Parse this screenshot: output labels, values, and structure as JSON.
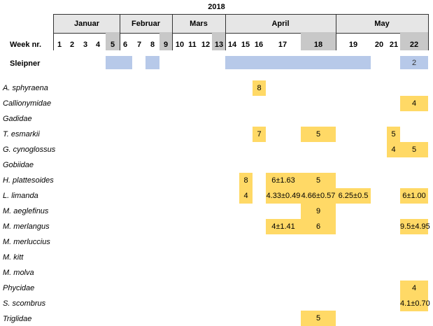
{
  "year": "2018",
  "week_label": "Week nr.",
  "months": [
    "Januar",
    "Februar",
    "Mars",
    "April",
    "May"
  ],
  "weeks": [
    "1",
    "2",
    "3",
    "4",
    "5",
    "6",
    "7",
    "8",
    "9",
    "10",
    "11",
    "12",
    "13",
    "14",
    "15",
    "16",
    "17",
    "18",
    "19",
    "20",
    "21",
    "22"
  ],
  "shaded_weeks": [
    "5",
    "9",
    "13",
    "18",
    "22"
  ],
  "sleipner": {
    "label": "Sleipner",
    "value_week22": "2"
  },
  "species": [
    "A. sphyraena",
    "Callionymidae",
    "Gadidae",
    "T. esmarkii",
    "G. cynoglossus",
    "Gobiidae",
    "H. plattesoides",
    "L. limanda",
    "M. aeglefinus",
    "M. merlangus",
    "M. merluccius",
    "M. kitt",
    "M. molva",
    "Phycidae",
    "S. scombrus",
    "Triglidae"
  ],
  "cells": {
    "a_sphyraena": {
      "w16": "8"
    },
    "callionymidae": {
      "w22": "4"
    },
    "t_esmarkii": {
      "w16": "7",
      "w18": "5",
      "w21": "5"
    },
    "g_cynoglossus": {
      "w21": "4",
      "w22": "5"
    },
    "h_plattesoides": {
      "w15": "8",
      "w17": "6±1.63",
      "w18": "5"
    },
    "l_limanda": {
      "w15": "4",
      "w17": "4.33±0.49",
      "w18": "4.66±0.57",
      "w19": "6.25±0.5",
      "w22": "6±1.00"
    },
    "m_aeglefinus": {
      "w18": "9"
    },
    "m_merlangus": {
      "w17": "4±1.41",
      "w18": "6",
      "w22": "9.5±4.95"
    },
    "phycidae": {
      "w22": "4"
    },
    "s_scombrus": {
      "w22": "4.1±0.70"
    },
    "triglidae": {
      "w18": "5"
    }
  },
  "colors": {
    "highlight": "#ffd966",
    "sleipner_blue": "#b7c9e9",
    "shaded": "#bfbfbf",
    "month_bg": "#e6e6e6"
  }
}
